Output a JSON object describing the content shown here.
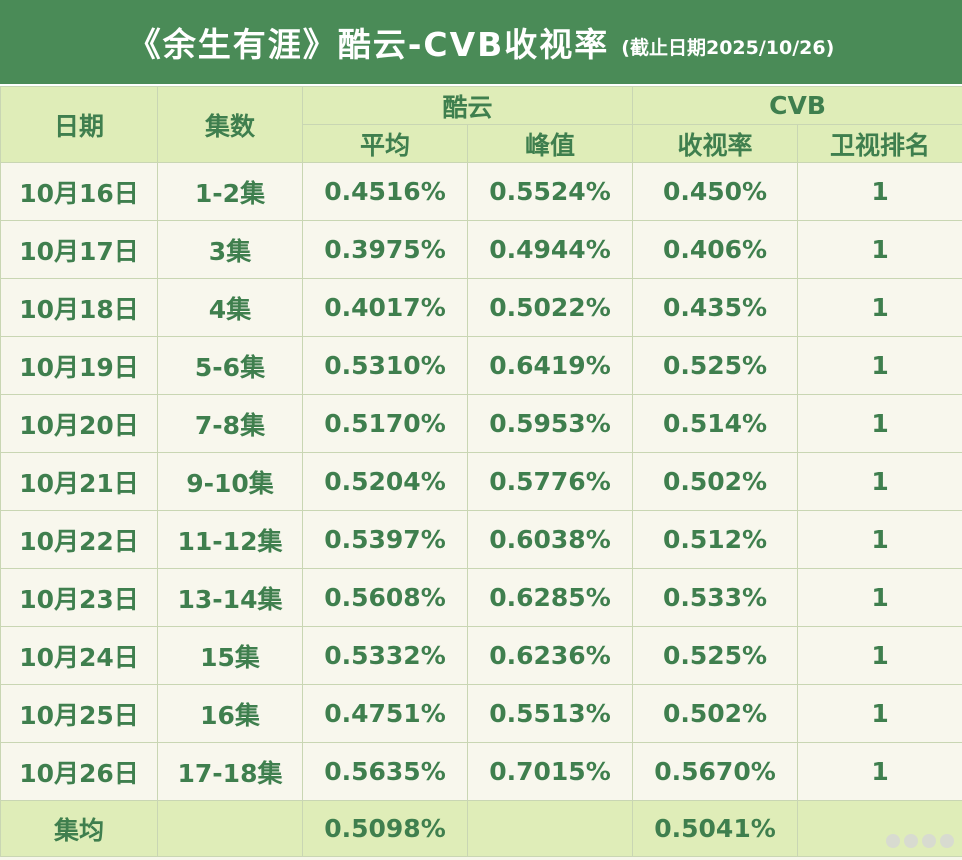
{
  "title": {
    "main": "《余生有涯》酷云-CVB收视率",
    "note": "(截止日期2025/10/26)"
  },
  "headers": {
    "date": "日期",
    "episodes": "集数",
    "kuyun": "酷云",
    "cvb": "CVB",
    "avg": "平均",
    "peak": "峰值",
    "rating": "收视率",
    "rank": "卫视排名"
  },
  "rows": [
    {
      "date": "10月16日",
      "ep": "1-2集",
      "avg": "0.4516%",
      "peak": "0.5524%",
      "cvb": "0.450%",
      "rank": "1"
    },
    {
      "date": "10月17日",
      "ep": "3集",
      "avg": "0.3975%",
      "peak": "0.4944%",
      "cvb": "0.406%",
      "rank": "1"
    },
    {
      "date": "10月18日",
      "ep": "4集",
      "avg": "0.4017%",
      "peak": "0.5022%",
      "cvb": "0.435%",
      "rank": "1"
    },
    {
      "date": "10月19日",
      "ep": "5-6集",
      "avg": "0.5310%",
      "peak": "0.6419%",
      "cvb": "0.525%",
      "rank": "1"
    },
    {
      "date": "10月20日",
      "ep": "7-8集",
      "avg": "0.5170%",
      "peak": "0.5953%",
      "cvb": "0.514%",
      "rank": "1"
    },
    {
      "date": "10月21日",
      "ep": "9-10集",
      "avg": "0.5204%",
      "peak": "0.5776%",
      "cvb": "0.502%",
      "rank": "1"
    },
    {
      "date": "10月22日",
      "ep": "11-12集",
      "avg": "0.5397%",
      "peak": "0.6038%",
      "cvb": "0.512%",
      "rank": "1"
    },
    {
      "date": "10月23日",
      "ep": "13-14集",
      "avg": "0.5608%",
      "peak": "0.6285%",
      "cvb": "0.533%",
      "rank": "1"
    },
    {
      "date": "10月24日",
      "ep": "15集",
      "avg": "0.5332%",
      "peak": "0.6236%",
      "cvb": "0.525%",
      "rank": "1"
    },
    {
      "date": "10月25日",
      "ep": "16集",
      "avg": "0.4751%",
      "peak": "0.5513%",
      "cvb": "0.502%",
      "rank": "1"
    },
    {
      "date": "10月26日",
      "ep": "17-18集",
      "avg": "0.5635%",
      "peak": "0.7015%",
      "cvb": "0.5670%",
      "rank": "1"
    }
  ],
  "footer": {
    "label": "集均",
    "avg": "0.5098%",
    "cvb": "0.5041%"
  },
  "colors": {
    "title_bg": "#4a8b57",
    "header_bg": "#dfedb8",
    "text": "#3f7f4e",
    "body_bg": "#f8f7ed"
  }
}
